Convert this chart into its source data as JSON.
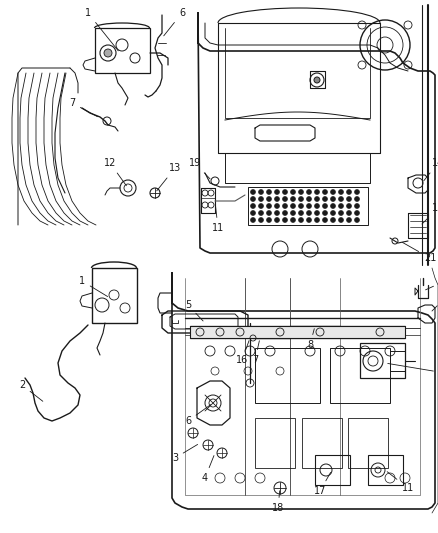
{
  "bg": "#ffffff",
  "lc": "#1a1a1a",
  "tc": "#1a1a1a",
  "fig_width": 4.38,
  "fig_height": 5.33,
  "dpi": 100
}
